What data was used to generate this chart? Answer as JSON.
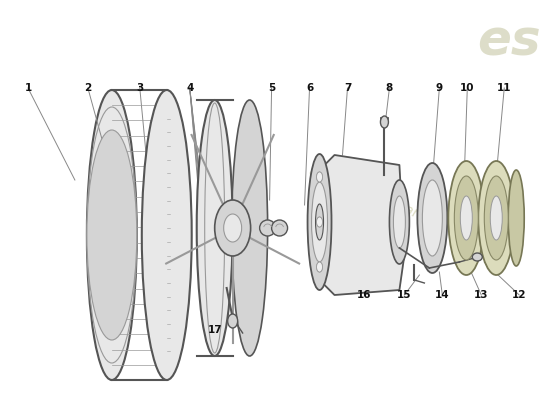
{
  "bg_color": "#ffffff",
  "line_color": "#555555",
  "line_color_light": "#999999",
  "line_color_dark": "#333333",
  "wm_es_color": "#d8d8c0",
  "wm_text_color": "#d4d4b4",
  "label_color": "#111111",
  "label_fontsize": 7.5,
  "leader_color": "#888888",
  "part_fill": "#e8e8e8",
  "part_fill2": "#d4d4d4",
  "part_fill3": "#f0f0f0",
  "bearing_fill": "#dcdcbc",
  "bearing_fill2": "#c8c8a4"
}
